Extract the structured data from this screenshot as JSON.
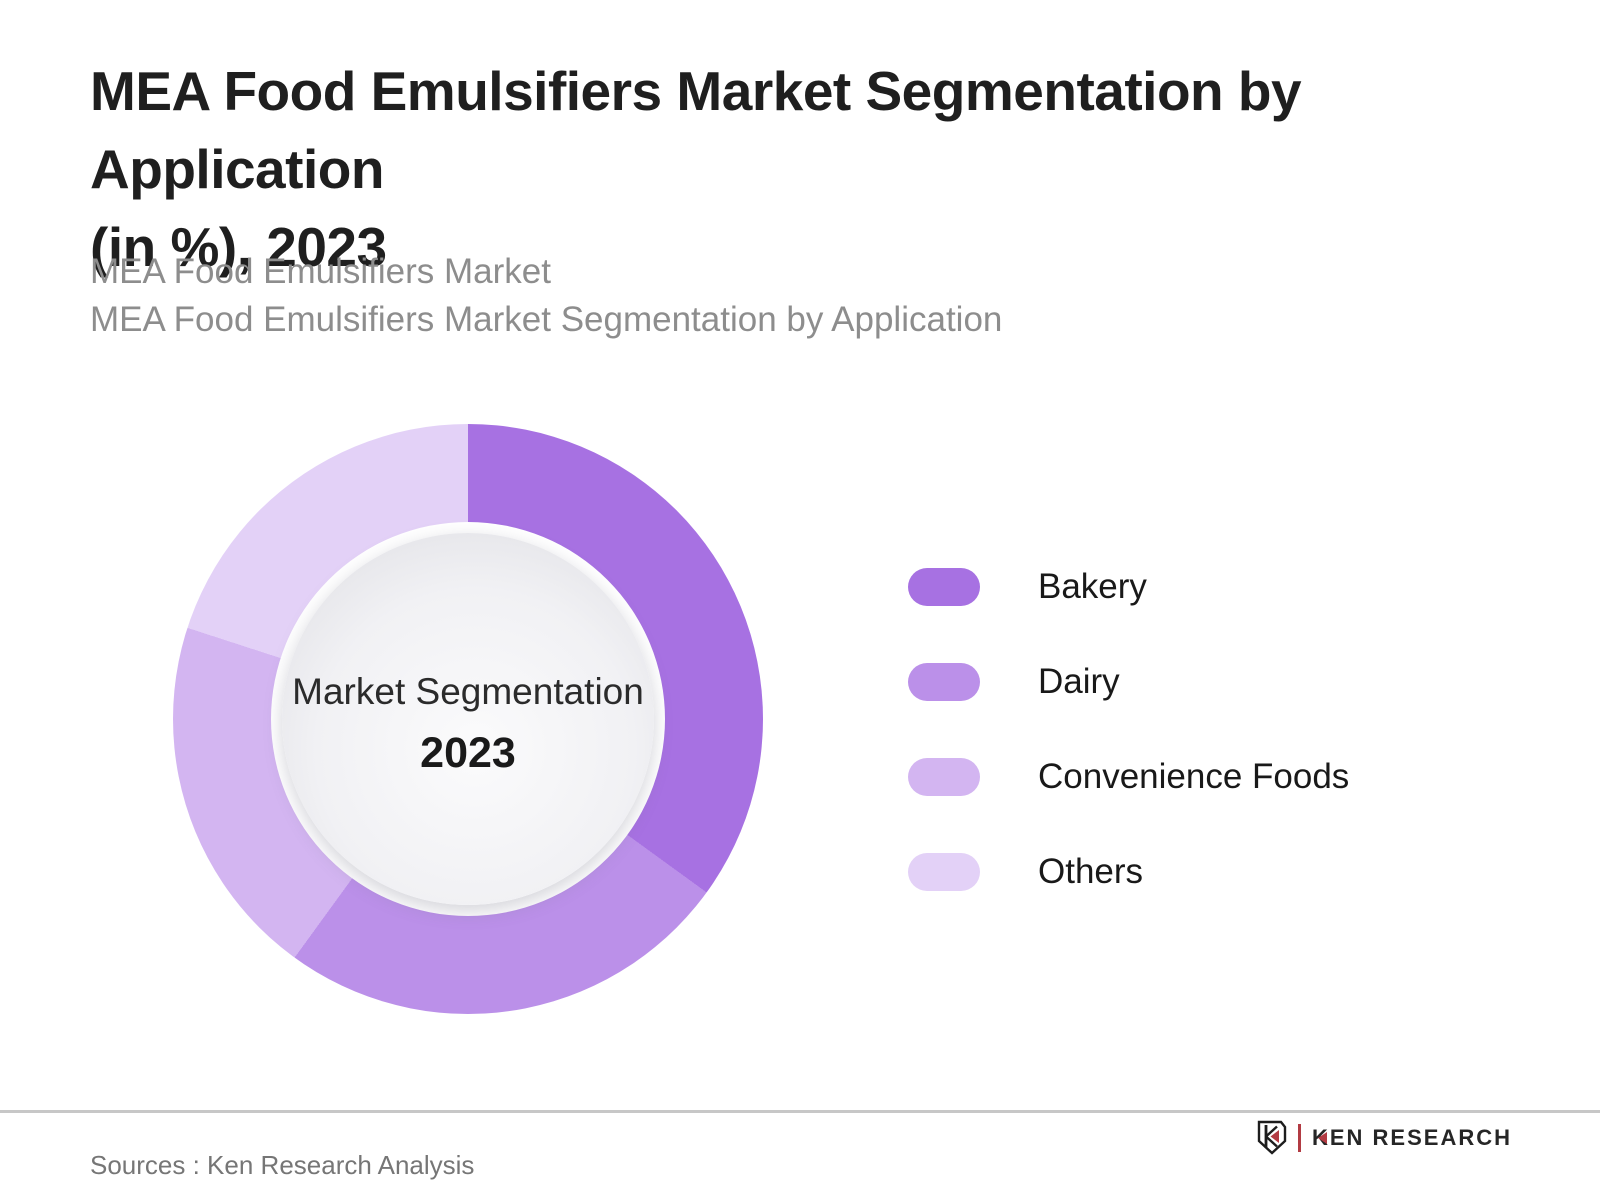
{
  "header": {
    "title_line1": "MEA Food Emulsifiers Market Segmentation by Application",
    "title_line2": "(in %), 2023",
    "subtitle_line1": "MEA Food Emulsifiers Market",
    "subtitle_line2": "MEA Food Emulsifiers Market Segmentation by Application"
  },
  "chart_data": {
    "type": "pie",
    "variant": "donut",
    "title": "MEA Food Emulsifiers Market Segmentation by Application (in %), 2023",
    "unit": "%",
    "center_label": "Market Segmentation",
    "center_year": "2023",
    "start_angle_deg": 0,
    "direction": "clockwise",
    "legend_position": "right",
    "segments": [
      {
        "label": "Bakery",
        "value": 35,
        "color": "#a771e2"
      },
      {
        "label": "Dairy",
        "value": 25,
        "color": "#bb90e9"
      },
      {
        "label": "Convenience Foods",
        "value": 20,
        "color": "#d3b5f1"
      },
      {
        "label": "Others",
        "value": 20,
        "color": "#e3d1f7"
      }
    ]
  },
  "footer": {
    "source_text": "Sources : Ken Research Analysis",
    "logo_text": "KEN RESEARCH"
  }
}
